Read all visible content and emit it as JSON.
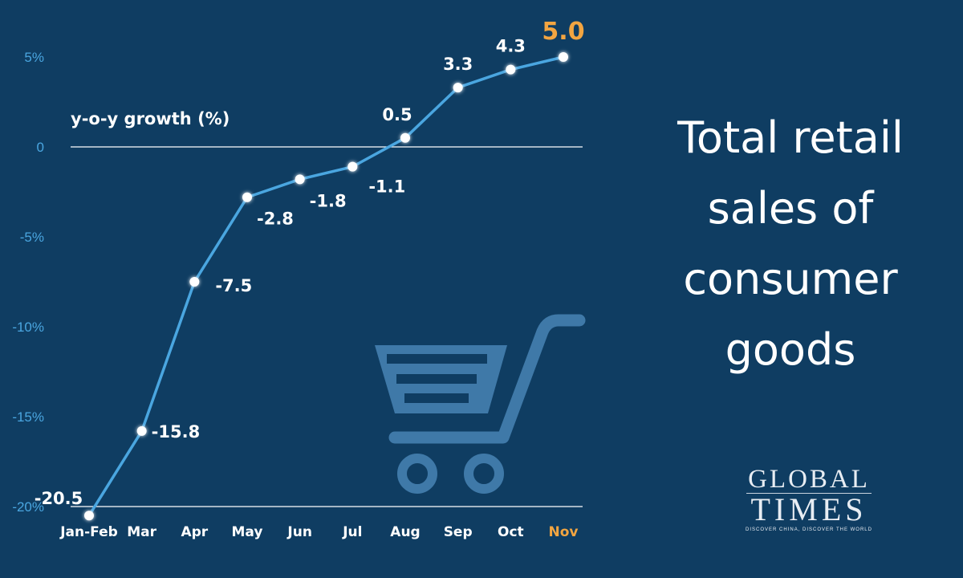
{
  "chart_data": {
    "type": "line",
    "title": "Total retail sales of consumer goods",
    "ylabel": "y-o-y growth (%)",
    "categories": [
      "Jan-Feb",
      "Mar",
      "Apr",
      "May",
      "Jun",
      "Jul",
      "Aug",
      "Sep",
      "Oct",
      "Nov"
    ],
    "values": [
      -20.5,
      -15.8,
      -7.5,
      -2.8,
      -1.8,
      -1.1,
      0.5,
      3.3,
      4.3,
      5.0
    ],
    "value_labels": [
      "-20.5",
      "-15.8",
      "-7.5",
      "-2.8",
      "-1.8",
      "-1.1",
      "0.5",
      "3.3",
      "4.3",
      "5.0"
    ],
    "y_ticks": [
      {
        "value": 5,
        "label": "5%"
      },
      {
        "value": 0,
        "label": "0"
      },
      {
        "value": -5,
        "label": "-5%"
      },
      {
        "value": -10,
        "label": "-10%"
      },
      {
        "value": -15,
        "label": "-15%"
      },
      {
        "value": -20,
        "label": "-20%"
      }
    ],
    "ylim": [
      -20,
      5
    ],
    "grid": false,
    "highlight_category": "Nov"
  },
  "title_lines": [
    "Total retail",
    "sales of",
    "consumer",
    "goods"
  ],
  "logo": {
    "line1": "GLOBAL",
    "line2": "TIMES",
    "tagline": "DISCOVER CHINA, DISCOVER THE WORLD"
  },
  "colors": {
    "background": "#0f3d62",
    "line": "#4aa6e0",
    "axis_tick": "#4aa6e0",
    "highlight": "#f2a541",
    "cart_icon": "#3f79a8"
  },
  "icon": "shopping-cart-icon"
}
